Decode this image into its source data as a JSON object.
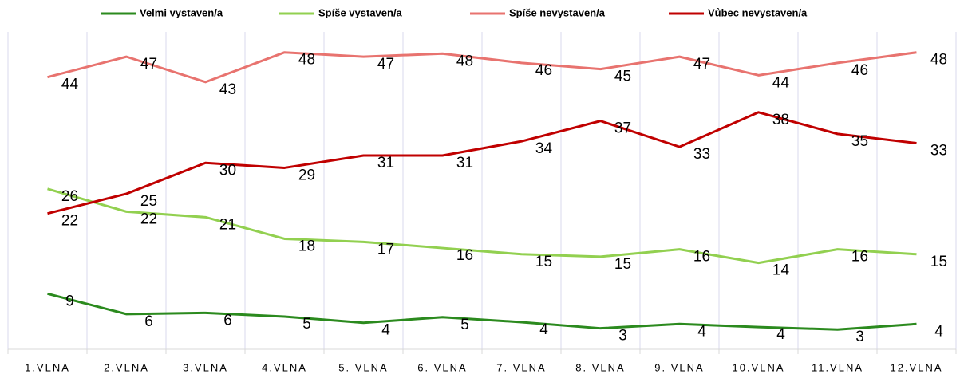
{
  "chart_data": {
    "type": "line",
    "categories": [
      "1.VLNA",
      "2.VLNA",
      "3.VLNA",
      "4.VLNA",
      "5. VLNA",
      "6. VLNA",
      "7. VLNA",
      "8. VLNA",
      "9. VLNA",
      "10.VLNA",
      "11.VLNA",
      "12.VLNA"
    ],
    "series": [
      {
        "name": "Velmi vystaven/a",
        "color": "#2b8a1e",
        "values": [
          9.0,
          5.7,
          5.9,
          5.3,
          4.3,
          5.2,
          4.4,
          3.4,
          4.1,
          3.6,
          3.2,
          4.1
        ],
        "value_labels": [
          "9",
          "6",
          "6",
          "5",
          "4",
          "5",
          "4",
          "3",
          "4",
          "4",
          "3",
          "4"
        ]
      },
      {
        "name": "Spíše vystaven/a",
        "color": "#92d050",
        "values": [
          26.0,
          22.3,
          21.4,
          17.9,
          17.4,
          16.4,
          15.4,
          15.0,
          16.2,
          14.0,
          16.2,
          15.4
        ],
        "value_labels": [
          "26",
          "22",
          "21",
          "18",
          "17",
          "16",
          "15",
          "15",
          "16",
          "14",
          "16",
          "15"
        ]
      },
      {
        "name": "Spíše nevystaven/a",
        "color": "#e8736f",
        "values": [
          44.1,
          47.4,
          43.3,
          48.1,
          47.4,
          47.9,
          46.4,
          45.4,
          47.4,
          44.4,
          46.4,
          48.1
        ],
        "value_labels": [
          "44",
          "47",
          "43",
          "48",
          "47",
          "48",
          "46",
          "45",
          "47",
          "44",
          "46",
          "48"
        ]
      },
      {
        "name": "Vůbec nevystaven/a",
        "color": "#c00000",
        "values": [
          22.0,
          25.2,
          30.2,
          29.4,
          31.4,
          31.4,
          33.7,
          37.0,
          32.8,
          38.4,
          34.9,
          33.4
        ],
        "value_labels": [
          "22",
          "25",
          "30",
          "29",
          "31",
          "31",
          "34",
          "37",
          "33",
          "38",
          "35",
          "33"
        ]
      }
    ],
    "legend": "top",
    "grid": true
  }
}
